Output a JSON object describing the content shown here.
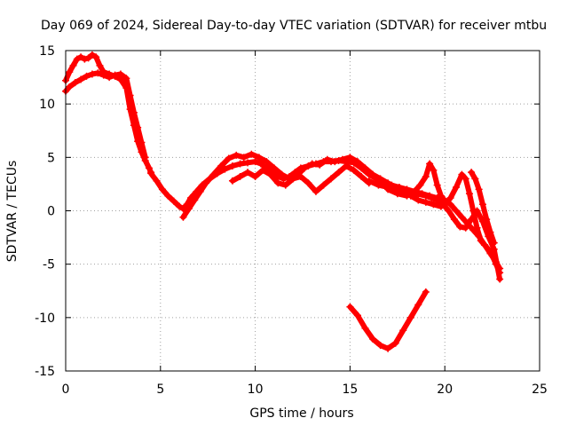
{
  "chart_data": {
    "type": "scatter",
    "title": "Day 069 of 2024, Sidereal Day-to-day VTEC variation (SDTVAR) for receiver mtbu",
    "xlabel": "GPS time / hours",
    "ylabel": "SDTVAR / TECUs",
    "xlim": [
      0,
      25
    ],
    "ylim": [
      -15,
      15
    ],
    "xticks": [
      0,
      5,
      10,
      15,
      20,
      25
    ],
    "yticks": [
      15,
      10,
      5,
      0,
      -5,
      -10,
      -15
    ],
    "xtick_labels": [
      "0",
      "5",
      "10",
      "15",
      "20",
      "25"
    ],
    "ytick_labels": [
      "15",
      "10",
      "5",
      "0",
      "-5",
      "-10",
      "-15"
    ],
    "grid": true,
    "marker": "plus",
    "series_color": "#ff0000",
    "series": [
      {
        "name": "track-1",
        "x": [
          0.0,
          0.2,
          0.4,
          0.6,
          0.8,
          1.0,
          1.2,
          1.4,
          1.6,
          1.8,
          2.0,
          2.3,
          2.6,
          2.9,
          3.2,
          3.4,
          3.6,
          3.8,
          4.0,
          4.2,
          4.4,
          4.5
        ],
        "y": [
          12.2,
          13.0,
          13.6,
          14.2,
          14.4,
          14.2,
          14.3,
          14.6,
          14.4,
          13.6,
          13.0,
          12.8,
          12.6,
          12.3,
          11.5,
          9.5,
          8.0,
          6.5,
          5.5,
          4.7,
          4.0,
          3.6
        ]
      },
      {
        "name": "track-2",
        "x": [
          0.0,
          0.2,
          0.5,
          0.8,
          1.1,
          1.4,
          1.7,
          2.0,
          2.3,
          2.6,
          2.9,
          3.2,
          3.4,
          3.6,
          3.8,
          4.0,
          4.2
        ],
        "y": [
          11.2,
          11.6,
          12.0,
          12.3,
          12.6,
          12.8,
          12.9,
          12.7,
          12.5,
          12.7,
          12.8,
          12.4,
          10.8,
          9.2,
          7.8,
          6.4,
          5.0
        ]
      },
      {
        "name": "track-3",
        "x": [
          4.5,
          4.8,
          5.1,
          5.4,
          5.7,
          6.0,
          6.2,
          6.4,
          6.6,
          6.9,
          7.2,
          7.6,
          8.0,
          8.4,
          8.8,
          9.2,
          9.6,
          10.0,
          10.3,
          10.6,
          10.9,
          11.2,
          11.5,
          11.8,
          12.1,
          12.4,
          12.8,
          13.2,
          13.6,
          14.0,
          14.4,
          14.8,
          15.2,
          15.6,
          16.0,
          16.4,
          16.8,
          17.2,
          17.6,
          18.0,
          18.4,
          18.8,
          19.2,
          19.6,
          20.0,
          20.3,
          20.6,
          20.9,
          21.2,
          21.5,
          21.8,
          22.1,
          22.4,
          22.7,
          22.9
        ],
        "y": [
          3.5,
          2.8,
          2.0,
          1.4,
          0.9,
          0.4,
          0.2,
          0.6,
          1.2,
          1.8,
          2.4,
          3.0,
          3.5,
          3.9,
          4.2,
          4.4,
          4.5,
          4.6,
          4.4,
          4.0,
          3.6,
          3.2,
          3.0,
          3.2,
          3.6,
          4.0,
          4.2,
          4.4,
          4.6,
          4.6,
          4.7,
          4.6,
          4.5,
          4.0,
          3.4,
          3.0,
          2.6,
          2.4,
          2.2,
          2.0,
          1.8,
          1.6,
          1.4,
          1.2,
          1.0,
          0.6,
          0.0,
          -0.6,
          -1.2,
          -1.8,
          -2.4,
          -3.2,
          -4.0,
          -4.8,
          -5.4
        ]
      },
      {
        "name": "track-4",
        "x": [
          6.2,
          6.5,
          6.8,
          7.1,
          7.4,
          7.8,
          8.2,
          8.6,
          9.0,
          9.4,
          9.8,
          10.2,
          10.6,
          11.0,
          11.4,
          11.8,
          12.2,
          12.6,
          13.0,
          13.4,
          13.8,
          14.2,
          14.6,
          15.0,
          15.4,
          15.8,
          16.2,
          16.6,
          17.0,
          17.4,
          17.8,
          18.2,
          18.6,
          19.0,
          19.4,
          19.8
        ],
        "y": [
          -0.6,
          0.2,
          1.0,
          1.8,
          2.6,
          3.4,
          4.2,
          4.9,
          5.2,
          5.0,
          5.3,
          5.0,
          4.6,
          4.0,
          3.4,
          3.0,
          3.3,
          4.0,
          4.4,
          4.3,
          4.8,
          4.6,
          4.8,
          5.0,
          4.6,
          4.0,
          3.4,
          3.0,
          2.6,
          2.2,
          1.8,
          1.4,
          1.0,
          0.8,
          0.6,
          0.4
        ]
      },
      {
        "name": "track-5",
        "x": [
          8.8,
          9.2,
          9.6,
          10.0,
          10.4,
          10.8,
          11.2,
          11.6,
          12.0,
          12.4,
          12.8,
          13.2,
          13.6,
          14.0,
          14.4,
          14.8,
          15.2,
          15.6,
          16.0
        ],
        "y": [
          2.8,
          3.2,
          3.6,
          3.2,
          3.8,
          3.4,
          2.6,
          2.4,
          3.0,
          3.2,
          2.6,
          1.8,
          2.4,
          3.0,
          3.6,
          4.2,
          3.8,
          3.2,
          2.6
        ]
      },
      {
        "name": "track-6",
        "x": [
          16.0,
          16.5,
          17.0,
          17.5,
          18.0,
          18.5,
          19.0,
          19.3,
          19.6,
          19.9,
          20.2,
          20.5,
          20.8,
          21.1,
          21.4,
          21.7,
          22.0,
          22.3,
          22.6,
          22.9
        ],
        "y": [
          2.8,
          2.4,
          2.2,
          2.0,
          1.8,
          1.6,
          1.4,
          1.2,
          1.0,
          0.6,
          0.0,
          -0.8,
          -1.5,
          -1.6,
          -0.8,
          0.0,
          -1.0,
          -2.4,
          -3.6,
          -6.4
        ]
      },
      {
        "name": "track-7",
        "x": [
          17.0,
          17.5,
          18.0,
          18.4,
          18.7,
          19.0,
          19.2,
          19.4,
          19.6,
          19.8,
          20.0
        ],
        "y": [
          2.0,
          1.6,
          1.4,
          1.8,
          2.4,
          3.2,
          4.4,
          3.8,
          2.4,
          1.4,
          0.8
        ]
      },
      {
        "name": "track-8",
        "x": [
          20.0,
          20.3,
          20.6,
          20.9,
          21.1,
          21.3,
          21.5,
          21.7,
          21.9,
          22.1,
          22.3,
          22.5,
          22.7,
          22.9
        ],
        "y": [
          0.6,
          1.2,
          2.2,
          3.4,
          3.0,
          1.6,
          0.0,
          -1.6,
          -2.8,
          -3.2,
          -3.6,
          -4.2,
          -5.0,
          -5.8
        ]
      },
      {
        "name": "track-9",
        "x": [
          21.4,
          21.6,
          21.8,
          22.0,
          22.2,
          22.4,
          22.6
        ],
        "y": [
          3.6,
          3.0,
          2.0,
          0.6,
          -0.8,
          -2.0,
          -3.0
        ]
      },
      {
        "name": "track-10",
        "x": [
          15.0,
          15.4,
          15.8,
          16.2,
          16.6,
          17.0,
          17.4,
          17.8,
          18.2,
          18.6,
          19.0
        ],
        "y": [
          -9.0,
          -9.8,
          -11.0,
          -12.0,
          -12.6,
          -12.9,
          -12.4,
          -11.2,
          -10.0,
          -8.8,
          -7.6
        ]
      }
    ]
  }
}
